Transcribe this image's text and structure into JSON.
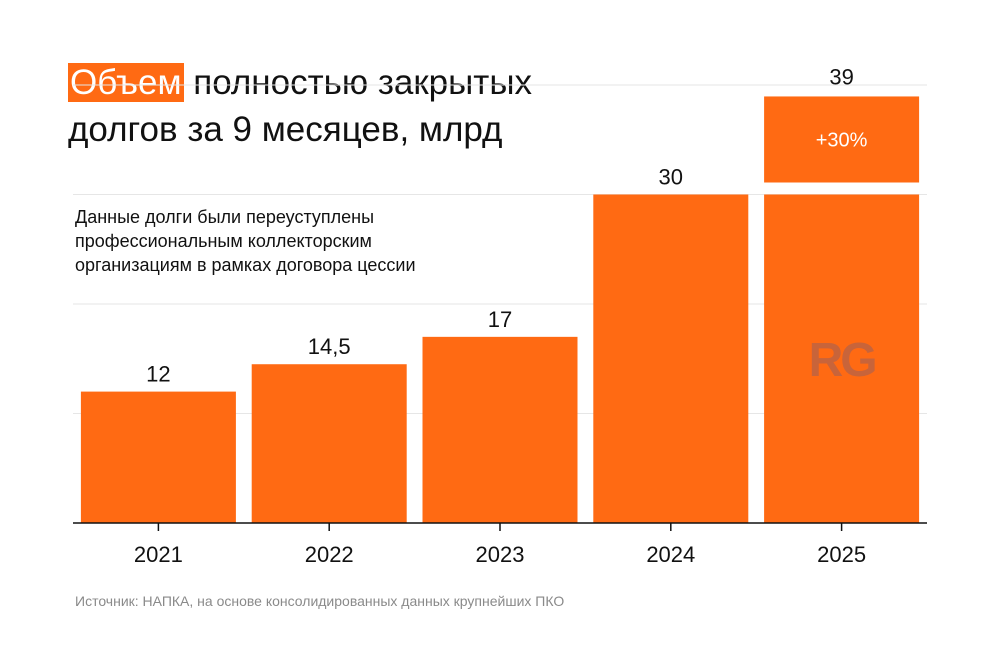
{
  "title": {
    "highlight": "Объем",
    "line1_rest": " полностью закрытых",
    "line2": "долгов за 9 месяцев, млрд"
  },
  "note": "Данные долги были переуступлены профессиональным коллекторским организациям в рамках договора цессии",
  "source": "Источник: НАПКА, на основе консолидированных данных крупнейших ПКО",
  "watermark": "RG",
  "colors": {
    "bar": "#ff6a13",
    "text": "#111111",
    "grid": "#e6e6e6",
    "source_text": "#8a8a8a",
    "watermark": "#c8643a"
  },
  "chart_data": {
    "type": "bar",
    "categories": [
      "2021",
      "2022",
      "2023",
      "2024",
      "2025"
    ],
    "values": [
      12,
      14.5,
      17,
      30,
      39
    ],
    "value_labels": [
      "12",
      "14,5",
      "17",
      "30",
      "39"
    ],
    "ylim": [
      0,
      40
    ],
    "grid": true,
    "xlabel": "",
    "ylabel": "",
    "growth": {
      "category": "2025",
      "from_value": 30,
      "label": "+30%"
    }
  }
}
